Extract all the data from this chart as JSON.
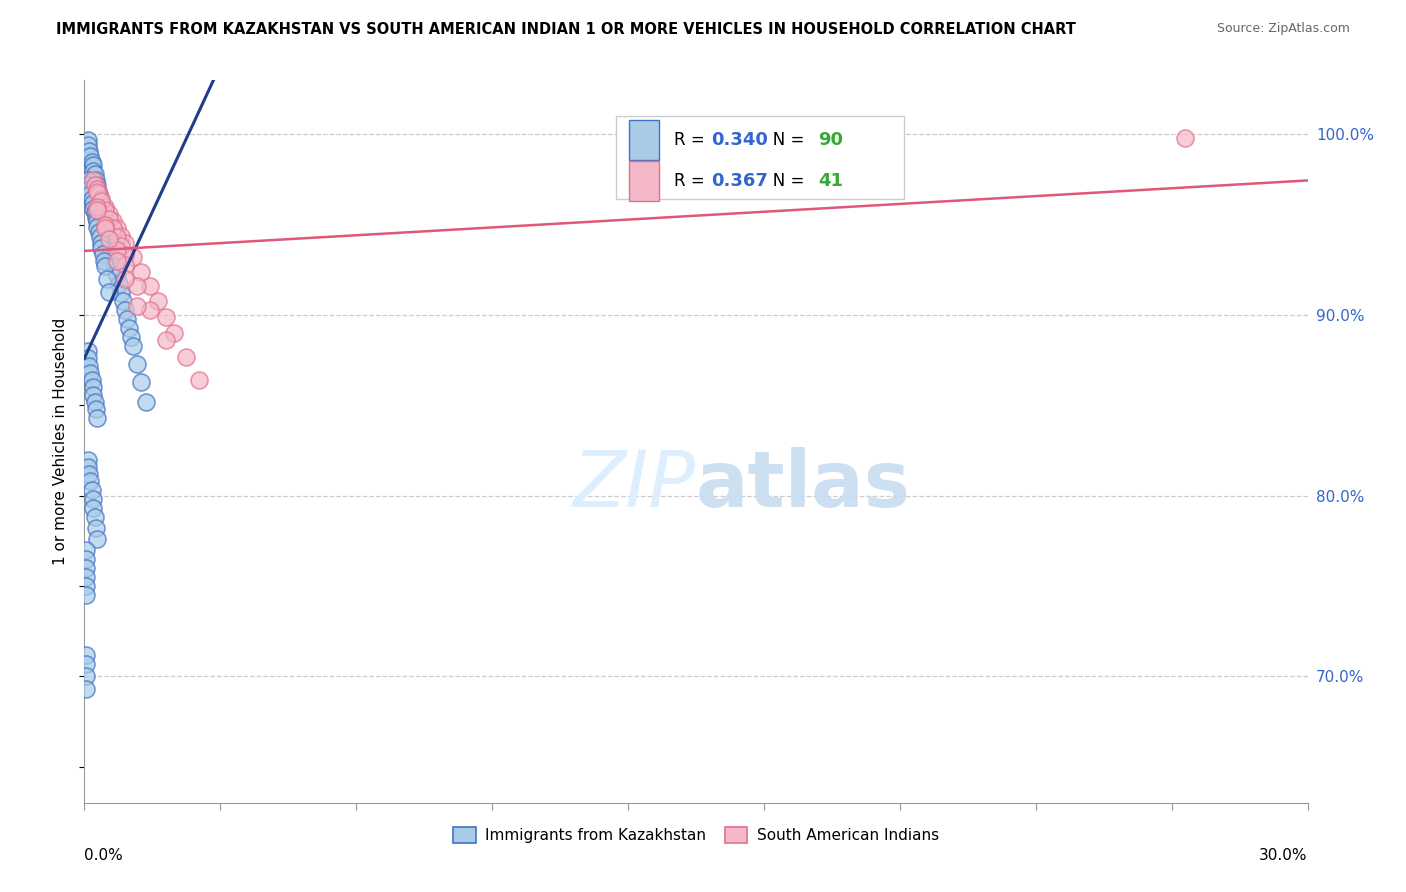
{
  "title": "IMMIGRANTS FROM KAZAKHSTAN VS SOUTH AMERICAN INDIAN 1 OR MORE VEHICLES IN HOUSEHOLD CORRELATION CHART",
  "source": "Source: ZipAtlas.com",
  "ylabel": "1 or more Vehicles in Household",
  "ytick_values": [
    0.7,
    0.8,
    0.9,
    1.0
  ],
  "xmin": 0.0,
  "xmax": 0.3,
  "ymin": 0.63,
  "ymax": 1.03,
  "legend_blue_r": "0.340",
  "legend_blue_n": "90",
  "legend_pink_r": "0.367",
  "legend_pink_n": "41",
  "blue_color": "#a8cce8",
  "blue_edge_color": "#4472c4",
  "pink_color": "#f4b8c8",
  "pink_edge_color": "#e07090",
  "blue_line_color": "#1f3d8a",
  "pink_line_color": "#e05878",
  "watermark_color": "#ddeeff",
  "blue_x": [
    0.0008,
    0.001,
    0.0012,
    0.0015,
    0.0018,
    0.002,
    0.0022,
    0.0025,
    0.0028,
    0.003,
    0.0032,
    0.0035,
    0.0038,
    0.004,
    0.0042,
    0.0045,
    0.0048,
    0.005,
    0.0052,
    0.0055,
    0.0058,
    0.006,
    0.0062,
    0.0065,
    0.0068,
    0.007,
    0.0072,
    0.0075,
    0.008,
    0.0085,
    0.009,
    0.0095,
    0.01,
    0.0105,
    0.011,
    0.0115,
    0.012,
    0.013,
    0.014,
    0.015,
    0.0008,
    0.001,
    0.0012,
    0.0015,
    0.0018,
    0.002,
    0.0022,
    0.0025,
    0.0028,
    0.003,
    0.0032,
    0.0035,
    0.0038,
    0.004,
    0.0042,
    0.0045,
    0.0048,
    0.005,
    0.0055,
    0.006,
    0.0008,
    0.001,
    0.0012,
    0.0015,
    0.0018,
    0.002,
    0.0022,
    0.0025,
    0.0028,
    0.003,
    0.0008,
    0.001,
    0.0012,
    0.0015,
    0.0018,
    0.002,
    0.0022,
    0.0025,
    0.0028,
    0.003,
    0.0005,
    0.0005,
    0.0005,
    0.0005,
    0.0005,
    0.0005,
    0.0005,
    0.0005,
    0.0005,
    0.0005
  ],
  "blue_y": [
    0.997,
    0.994,
    0.991,
    0.988,
    0.985,
    0.983,
    0.98,
    0.978,
    0.975,
    0.972,
    0.97,
    0.967,
    0.964,
    0.962,
    0.959,
    0.957,
    0.954,
    0.952,
    0.95,
    0.947,
    0.944,
    0.942,
    0.94,
    0.937,
    0.934,
    0.932,
    0.93,
    0.927,
    0.922,
    0.917,
    0.912,
    0.908,
    0.903,
    0.898,
    0.893,
    0.888,
    0.883,
    0.873,
    0.863,
    0.852,
    0.975,
    0.972,
    0.97,
    0.967,
    0.964,
    0.962,
    0.959,
    0.957,
    0.954,
    0.952,
    0.949,
    0.946,
    0.943,
    0.94,
    0.937,
    0.934,
    0.93,
    0.927,
    0.92,
    0.913,
    0.88,
    0.876,
    0.872,
    0.868,
    0.864,
    0.86,
    0.856,
    0.852,
    0.848,
    0.843,
    0.82,
    0.816,
    0.812,
    0.808,
    0.803,
    0.798,
    0.793,
    0.788,
    0.782,
    0.776,
    0.77,
    0.765,
    0.76,
    0.755,
    0.75,
    0.745,
    0.712,
    0.707,
    0.7,
    0.693
  ],
  "pink_x": [
    0.002,
    0.0025,
    0.003,
    0.0035,
    0.004,
    0.005,
    0.006,
    0.007,
    0.008,
    0.009,
    0.01,
    0.012,
    0.014,
    0.016,
    0.018,
    0.02,
    0.022,
    0.025,
    0.028,
    0.003,
    0.004,
    0.005,
    0.006,
    0.007,
    0.008,
    0.009,
    0.01,
    0.003,
    0.005,
    0.008,
    0.01,
    0.013,
    0.016,
    0.02,
    0.003,
    0.005,
    0.006,
    0.008,
    0.01,
    0.013,
    0.27
  ],
  "pink_y": [
    0.975,
    0.972,
    0.97,
    0.967,
    0.964,
    0.96,
    0.956,
    0.952,
    0.948,
    0.944,
    0.94,
    0.932,
    0.924,
    0.916,
    0.908,
    0.899,
    0.89,
    0.877,
    0.864,
    0.968,
    0.963,
    0.958,
    0.953,
    0.948,
    0.943,
    0.938,
    0.933,
    0.96,
    0.95,
    0.936,
    0.928,
    0.916,
    0.903,
    0.886,
    0.958,
    0.948,
    0.942,
    0.93,
    0.92,
    0.905,
    0.998
  ]
}
